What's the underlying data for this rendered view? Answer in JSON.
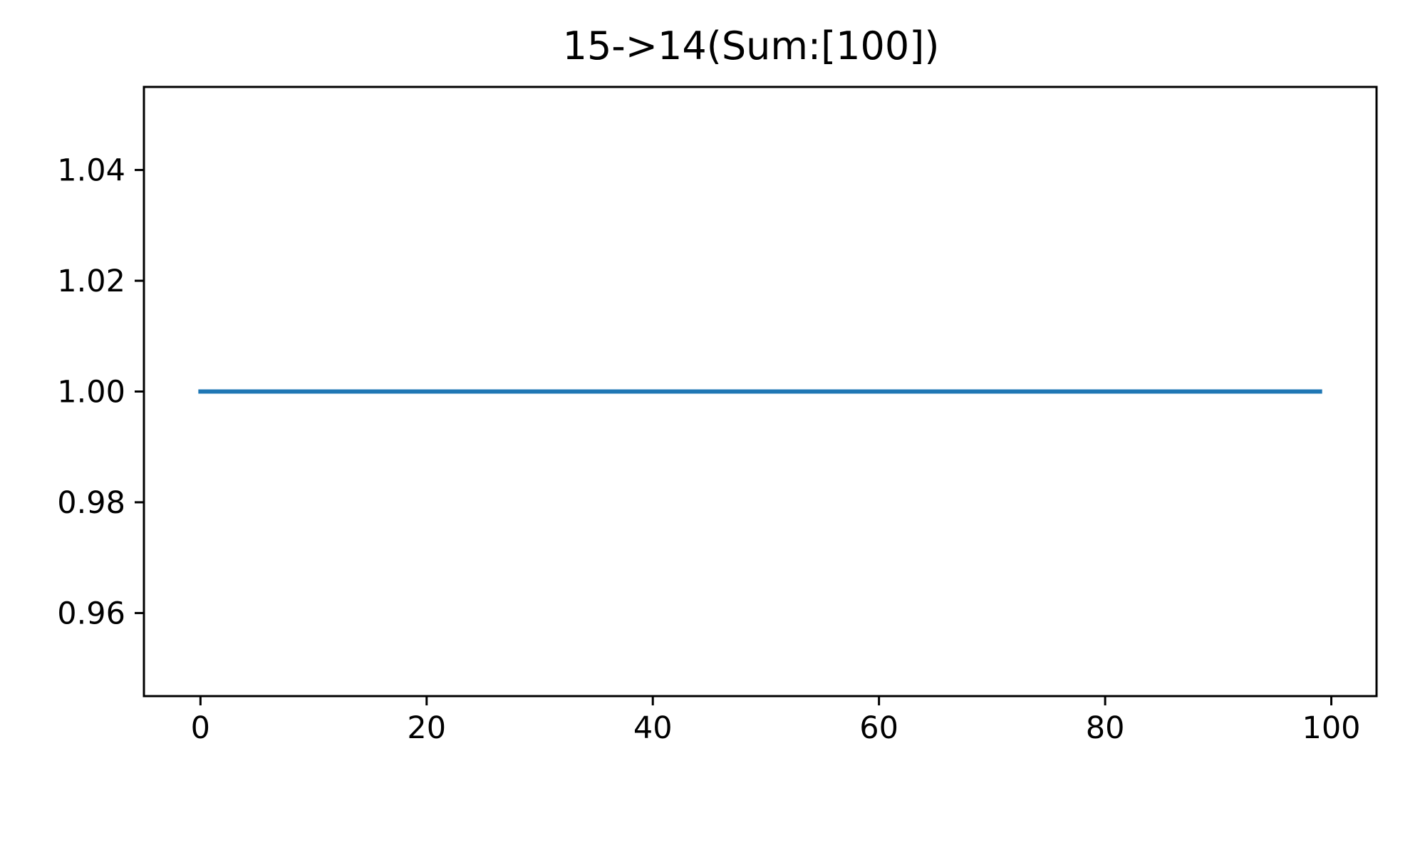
{
  "chart_data": {
    "type": "line",
    "title": "15->14(Sum:[100])",
    "xlabel": "",
    "ylabel": "",
    "xlim": [
      -5,
      104
    ],
    "ylim": [
      0.945,
      1.055
    ],
    "x_ticks": [
      0,
      20,
      40,
      60,
      80,
      100
    ],
    "x_tick_labels": [
      "0",
      "20",
      "40",
      "60",
      "80",
      "100"
    ],
    "y_ticks": [
      0.96,
      0.98,
      1.0,
      1.02,
      1.04
    ],
    "y_tick_labels": [
      "0.96",
      "0.98",
      "1.00",
      "1.02",
      "1.04"
    ],
    "grid": false,
    "series": [
      {
        "color": "#1f77b4",
        "x": [
          0,
          99
        ],
        "y": [
          1.0,
          1.0
        ]
      }
    ]
  }
}
